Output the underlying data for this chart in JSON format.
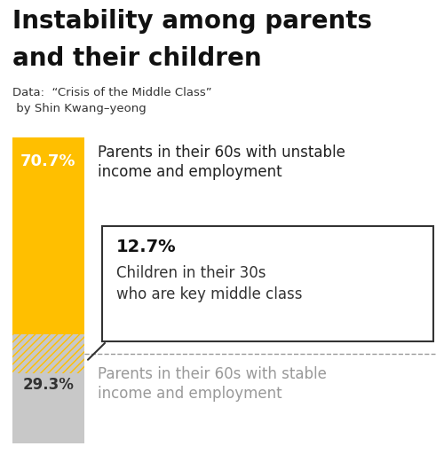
{
  "title_line1": "Instability among parents",
  "title_line2": "and their children",
  "subtitle_line1": "Data:  “Crisis of the Middle Class”",
  "subtitle_line2": " by Shin Kwang–yeong",
  "bar_unstable_pct": 70.7,
  "bar_stable_pct": 29.3,
  "bar_hatch_pct": 12.7,
  "bar_color_unstable": "#FFBF00",
  "bar_color_stable": "#C8C8C8",
  "hatch_pattern": "////",
  "hatch_facecolor": "#C8C8C8",
  "hatch_edgecolor": "#FFBF00",
  "label_unstable_pct": "70.7%",
  "label_stable_pct": "29.3%",
  "label_unstable_text_line1": "Parents in their 60s with unstable",
  "label_unstable_text_line2": "income and employment",
  "label_stable_text_line1": "Parents in their 60s with stable",
  "label_stable_text_line2": "income and employment",
  "box_pct": "12.7%",
  "box_text_line1": "Children in their 30s",
  "box_text_line2": "who are key middle class",
  "background_color": "#FFFFFF"
}
